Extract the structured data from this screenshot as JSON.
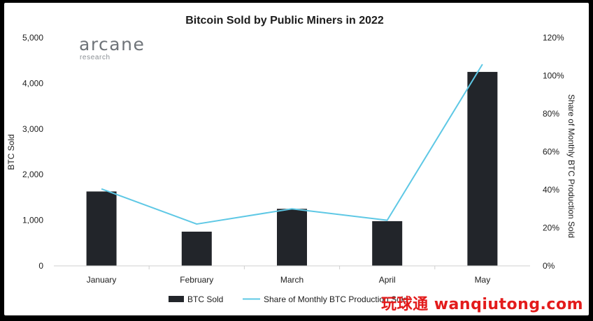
{
  "chart_data": {
    "type": "bar",
    "title": "Bitcoin Sold by Public Miners in 2022",
    "categories": [
      "January",
      "February",
      "March",
      "April",
      "May"
    ],
    "ylabel_left": "BTC Sold",
    "ylabel_right": "Share of Monthly BTC Production Sold",
    "ylim_left": [
      0,
      5000
    ],
    "ylim_right": [
      0,
      120
    ],
    "left_ticks": [
      "5,000",
      "4,000",
      "3,000",
      "2,000",
      "1,000",
      "0"
    ],
    "right_ticks": [
      "120%",
      "100%",
      "80%",
      "60%",
      "40%",
      "20%",
      "0%"
    ],
    "grid": false,
    "legend_position": "bottom",
    "series": [
      {
        "name": "BTC Sold",
        "kind": "bar",
        "axis": "left",
        "color": "#22252a",
        "values": [
          1630,
          750,
          1250,
          980,
          4250
        ]
      },
      {
        "name": "Share of Monthly BTC Production Sold",
        "kind": "line",
        "axis": "right",
        "color": "#5ec8e5",
        "values": [
          40.5,
          22,
          30,
          24,
          106
        ]
      }
    ]
  },
  "logo": {
    "name": "arcane",
    "sub": "research"
  },
  "watermark": "玩球通 wanqiutong.com"
}
